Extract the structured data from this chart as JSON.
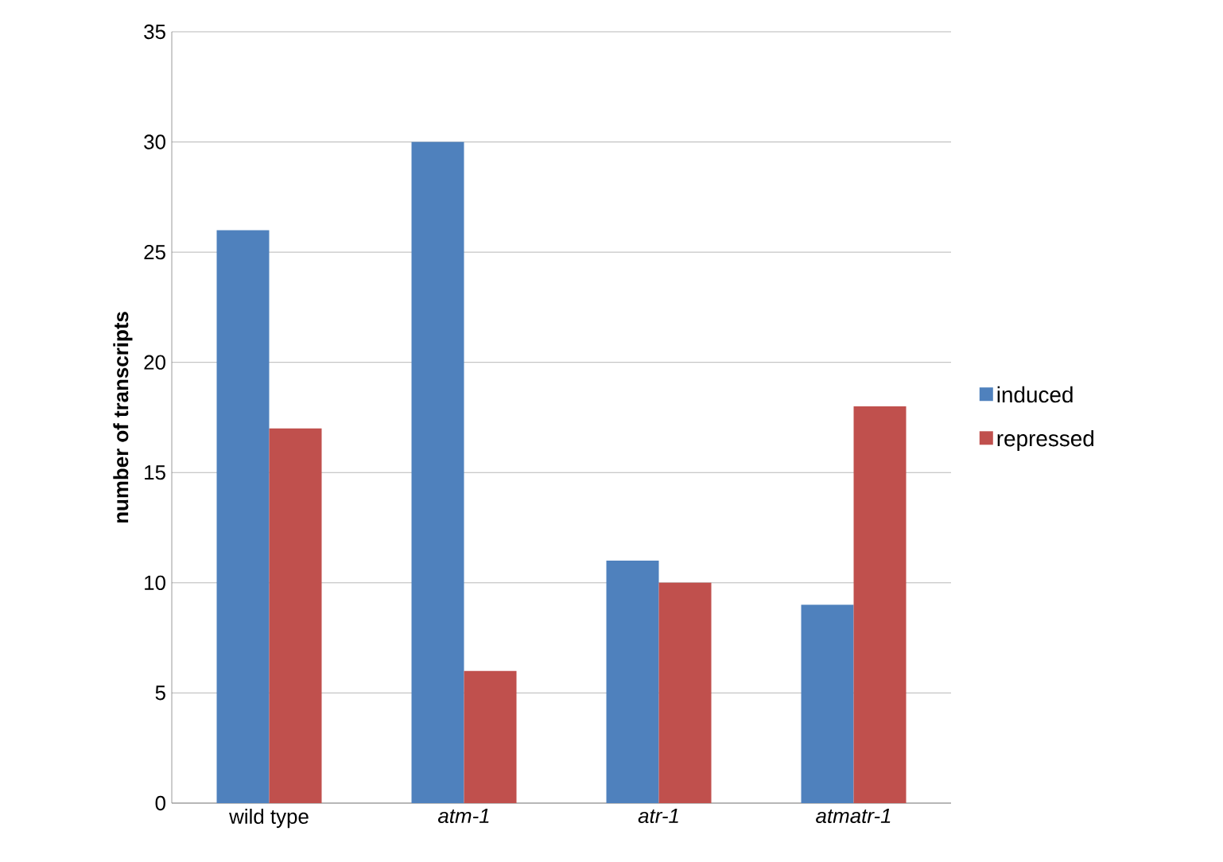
{
  "chart_data": {
    "type": "bar",
    "ylabel": "**number of transcripts**",
    "categories": [
      "wild type",
      "*atm-1*",
      "*atr-1*",
      "*atmatr-1*"
    ],
    "series": [
      {
        "name": "induced",
        "color": "#4f81bd",
        "values": [
          26,
          30,
          11,
          9
        ]
      },
      {
        "name": "repressed",
        "color": "#c0504d",
        "values": [
          17,
          6,
          10,
          18
        ]
      }
    ],
    "ylim": [
      0,
      35
    ],
    "yticks": [
      0,
      5,
      10,
      15,
      20,
      25,
      30,
      35
    ],
    "grid": "y",
    "legend": "right"
  }
}
